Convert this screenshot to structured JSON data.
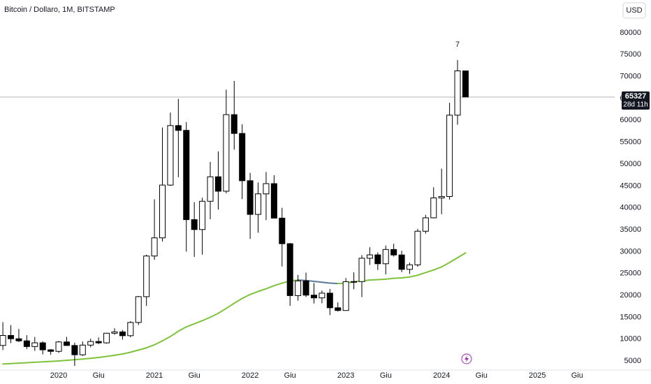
{
  "chart_data": {
    "type": "candlestick",
    "title": "Bitcoin / Dollaro, 1M, BITSTAMP",
    "currency": "USD",
    "open": [
      8550,
      10830,
      10080,
      9600,
      8300,
      9150,
      7550,
      7200,
      9350,
      8540,
      6420,
      8630,
      9450,
      9140,
      11340,
      11650,
      10780,
      13800,
      19700,
      28990,
      33140,
      45200,
      58800,
      57700,
      37300,
      35040,
      41500,
      47100,
      43800,
      61300,
      57000,
      46200,
      38500,
      43190,
      45530,
      37650,
      31800,
      19940,
      23300,
      20050,
      19420,
      20500,
      17160,
      16540,
      23130,
      23150,
      28480,
      29250,
      27220,
      30480,
      29230,
      25940,
      26970,
      34650,
      37720,
      42270,
      42580,
      61180,
      71300
    ],
    "high": [
      13880,
      13200,
      12330,
      10900,
      10500,
      9500,
      7700,
      9580,
      10500,
      9190,
      9460,
      10080,
      10390,
      11440,
      12470,
      12090,
      14100,
      19860,
      29300,
      41950,
      58350,
      61780,
      64900,
      59600,
      41300,
      42300,
      50500,
      52900,
      67000,
      69000,
      59100,
      47990,
      45800,
      48200,
      47460,
      40000,
      31980,
      24670,
      25200,
      22800,
      21100,
      21470,
      18390,
      23950,
      25250,
      29200,
      31000,
      29820,
      31390,
      31800,
      30200,
      27480,
      35200,
      38400,
      44700,
      48970,
      64000,
      73800,
      71300
    ],
    "low": [
      7500,
      9100,
      9320,
      7730,
      7300,
      6500,
      6430,
      6850,
      8450,
      3850,
      6150,
      8120,
      8850,
      8970,
      10990,
      9880,
      10400,
      13220,
      17600,
      28130,
      32300,
      45000,
      47000,
      30000,
      28800,
      29300,
      37400,
      39600,
      43300,
      53300,
      42000,
      32900,
      34300,
      37200,
      37700,
      26600,
      17600,
      18780,
      19600,
      18150,
      18200,
      15480,
      16300,
      16500,
      21400,
      19600,
      26950,
      25800,
      24800,
      28860,
      25300,
      24900,
      26550,
      34100,
      37600,
      38550,
      41880,
      59000,
      65300
    ],
    "close": [
      10830,
      10080,
      9600,
      8300,
      9150,
      7550,
      7200,
      9350,
      8540,
      6420,
      8630,
      9450,
      9140,
      11340,
      11650,
      10780,
      13800,
      19700,
      28990,
      33140,
      45200,
      58800,
      57700,
      37300,
      35040,
      41500,
      47100,
      43800,
      61300,
      57000,
      46200,
      38500,
      43190,
      45530,
      37650,
      31800,
      19940,
      23300,
      20050,
      19420,
      20500,
      17160,
      16540,
      23130,
      23150,
      28480,
      29250,
      27220,
      30480,
      29230,
      25940,
      26970,
      34650,
      37720,
      42270,
      42580,
      61180,
      71300,
      65327
    ],
    "up_color": "#ffffff",
    "down_color": "#000000",
    "ma": {
      "values": [
        4300,
        4400,
        4500,
        4600,
        4700,
        4800,
        4900,
        5000,
        5150,
        5300,
        5450,
        5600,
        5800,
        6050,
        6300,
        6600,
        7000,
        7500,
        8000,
        8700,
        9600,
        10600,
        11800,
        12800,
        13500,
        14200,
        15000,
        15900,
        17000,
        18200,
        19300,
        20200,
        20900,
        21500,
        22200,
        22800,
        23300,
        23500,
        23400,
        23200,
        23000,
        22800,
        22700,
        22800,
        23100,
        23300,
        23500,
        23600,
        23700,
        23900,
        24000,
        24200,
        24600,
        25200,
        25800,
        26500,
        27500,
        28600,
        29700
      ],
      "rising_color": "#7ec33b",
      "falling_color": "#5b7a99"
    },
    "last_price": {
      "value": 65327,
      "countdown": "28d 11h"
    },
    "annotation": {
      "text": "7",
      "x": 57
    },
    "xlim": [
      -0.36,
      76.7
    ],
    "ylim": [
      2930,
      87500
    ],
    "yticks": [
      5000,
      10000,
      15000,
      20000,
      25000,
      30000,
      35000,
      40000,
      45000,
      50000,
      55000,
      60000,
      65000,
      70000,
      75000,
      80000
    ],
    "xticks": [
      {
        "value": 7,
        "label": "2020"
      },
      {
        "value": 12,
        "label": "Giu"
      },
      {
        "value": 19,
        "label": "2021"
      },
      {
        "value": 24,
        "label": "Giu"
      },
      {
        "value": 31,
        "label": "2022"
      },
      {
        "value": 36,
        "label": "Giu"
      },
      {
        "value": 43,
        "label": "2023"
      },
      {
        "value": 48,
        "label": "Giu"
      },
      {
        "value": 55,
        "label": "2024"
      },
      {
        "value": 60,
        "label": "Giu"
      },
      {
        "value": 67,
        "label": "2025"
      },
      {
        "value": 72,
        "label": "Giu"
      }
    ]
  }
}
